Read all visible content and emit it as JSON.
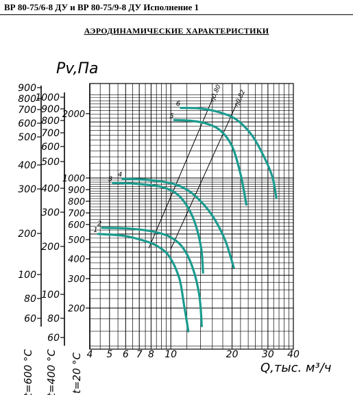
{
  "header": {
    "title": "ВР 80-75/6-8 ДУ и ВР 80-75/9-8 ДУ Исполнение 1"
  },
  "chart_title": "АЭРОДИНАМИЧЕСКИЕ ХАРАКТЕРИСТИКИ",
  "chart_data": {
    "type": "line",
    "title": "АЭРОДИНАМИЧЕСКИЕ ХАРАКТЕРИСТИКИ",
    "ylabel": "Pv,Па",
    "xlabel": "Q,тыс. м³/ч",
    "x_scale": "log",
    "y_scale": "log",
    "xlim": [
      4,
      40
    ],
    "x_ticks": [
      "4",
      "5",
      "6",
      "7",
      "8",
      "10",
      "20",
      "30",
      "40"
    ],
    "y_axes": [
      {
        "label": "t=600 °C",
        "ticks": [
          "900",
          "800",
          "700",
          "600",
          "500",
          "400",
          "300",
          "200",
          "100",
          "80",
          "60"
        ]
      },
      {
        "label": "t=400 °C",
        "ticks": [
          "1000",
          "900",
          "800",
          "700",
          "600",
          "500",
          "400",
          "300",
          "200",
          "100",
          "80",
          "60"
        ]
      },
      {
        "label": "t=20 °C",
        "ticks": [
          "2000",
          "1000",
          "900",
          "800",
          "700",
          "600",
          "500",
          "400",
          "300",
          "200"
        ]
      }
    ],
    "grid": true,
    "series": [
      {
        "name": "1",
        "x": [
          4.4,
          5.8,
          7.4,
          8.6,
          9.8,
          11.0,
          11.6,
          12.2
        ],
        "y": [
          500,
          490,
          460,
          430,
          380,
          290,
          210,
          150
        ]
      },
      {
        "name": "2",
        "x": [
          4.6,
          6.2,
          8.2,
          10.0,
          11.5,
          12.8,
          13.8,
          14.2
        ],
        "y": [
          540,
          535,
          515,
          480,
          420,
          330,
          235,
          160
        ]
      },
      {
        "name": "3",
        "x": [
          5.2,
          6.8,
          8.8,
          10.4,
          11.8,
          13.1,
          14.1,
          14.4
        ],
        "y": [
          940,
          930,
          900,
          840,
          730,
          580,
          420,
          310
        ]
      },
      {
        "name": "4",
        "x": [
          5.8,
          7.4,
          9.4,
          11.2,
          13.2,
          15.8,
          18.4,
          20.4
        ],
        "y": [
          990,
          980,
          950,
          900,
          800,
          640,
          470,
          330
        ]
      },
      {
        "name": "5",
        "x": [
          10.4,
          12.5,
          15.0,
          17.5,
          20.0,
          22.0,
          23.5
        ],
        "y": [
          2050,
          2030,
          1960,
          1800,
          1480,
          1050,
          720
        ]
      },
      {
        "name": "6",
        "x": [
          11.2,
          14.0,
          17.2,
          21.0,
          25.0,
          28.5,
          31.5,
          33.0
        ],
        "y": [
          2380,
          2360,
          2260,
          2060,
          1700,
          1320,
          1020,
          780
        ]
      }
    ],
    "efficiency_lines": [
      {
        "label": "η0,80",
        "x": [
          7.8,
          16.0
        ],
        "y": [
          420,
          2650
        ]
      },
      {
        "label": "η0,82",
        "x": [
          10.0,
          21.0
        ],
        "y": [
          415,
          2490
        ]
      }
    ]
  }
}
